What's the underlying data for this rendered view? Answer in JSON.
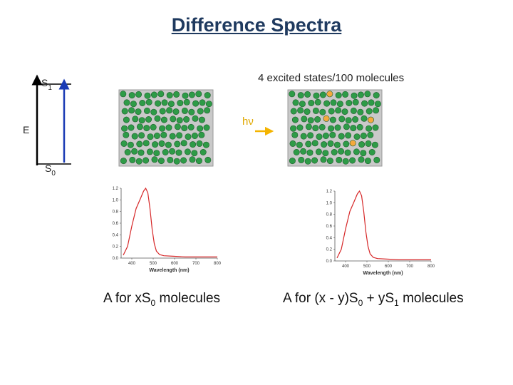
{
  "title": "Difference Spectra",
  "energy": {
    "s1_base": "S",
    "s1_sub": "1",
    "s0_base": "S",
    "s0_sub": "0",
    "axis_label": "E"
  },
  "excitation": {
    "photon_label": "hν",
    "note": "4 excited states/100 molecules"
  },
  "colors": {
    "ground": "#2e9b47",
    "excited": "#f4a93c",
    "arrow": "#f4b400",
    "transition": "#1a3bb5",
    "spectrum": "#d62728"
  },
  "captions": {
    "left": {
      "pre": "A for x",
      "s": "S",
      "sub": "0",
      "post": " molecules"
    },
    "right": {
      "pre": "A for (x - y)",
      "s0": "S",
      "sub0": "0",
      "mid": " +  y",
      "s1": "S",
      "sub1": "1",
      "post": " molecules"
    }
  },
  "chart_data": [
    {
      "type": "line",
      "title": "",
      "xlabel": "Wavelength (nm)",
      "ylabel": "",
      "xlim": [
        350,
        800
      ],
      "ylim": [
        0,
        1.2
      ],
      "x_ticks": [
        "400",
        "500",
        "600",
        "700",
        "800"
      ],
      "y_ticks": [
        "0.0",
        "0.2",
        "0.4",
        "0.6",
        "0.8",
        "1.0",
        "1.2"
      ],
      "series": [
        {
          "x": [
            360,
            380,
            400,
            420,
            440,
            455,
            465,
            475,
            485,
            495,
            505,
            515,
            530,
            550,
            600,
            650,
            700,
            750,
            800
          ],
          "y": [
            0.05,
            0.2,
            0.55,
            0.85,
            1.02,
            1.15,
            1.2,
            1.12,
            0.85,
            0.5,
            0.25,
            0.12,
            0.06,
            0.04,
            0.03,
            0.02,
            0.02,
            0.02,
            0.02
          ]
        }
      ]
    },
    {
      "type": "line",
      "title": "",
      "xlabel": "Wavelength (nm)",
      "ylabel": "",
      "xlim": [
        350,
        800
      ],
      "ylim": [
        0,
        1.2
      ],
      "x_ticks": [
        "400",
        "500",
        "600",
        "700",
        "800"
      ],
      "y_ticks": [
        "0.0",
        "0.2",
        "0.4",
        "0.6",
        "0.8",
        "1.0",
        "1.2"
      ],
      "series": [
        {
          "x": [
            360,
            380,
            400,
            420,
            440,
            455,
            465,
            475,
            485,
            495,
            505,
            515,
            530,
            550,
            600,
            650,
            700,
            750,
            800
          ],
          "y": [
            0.05,
            0.2,
            0.55,
            0.85,
            1.02,
            1.15,
            1.2,
            1.12,
            0.85,
            0.5,
            0.25,
            0.12,
            0.06,
            0.04,
            0.03,
            0.02,
            0.02,
            0.02,
            0.02
          ]
        }
      ]
    }
  ]
}
